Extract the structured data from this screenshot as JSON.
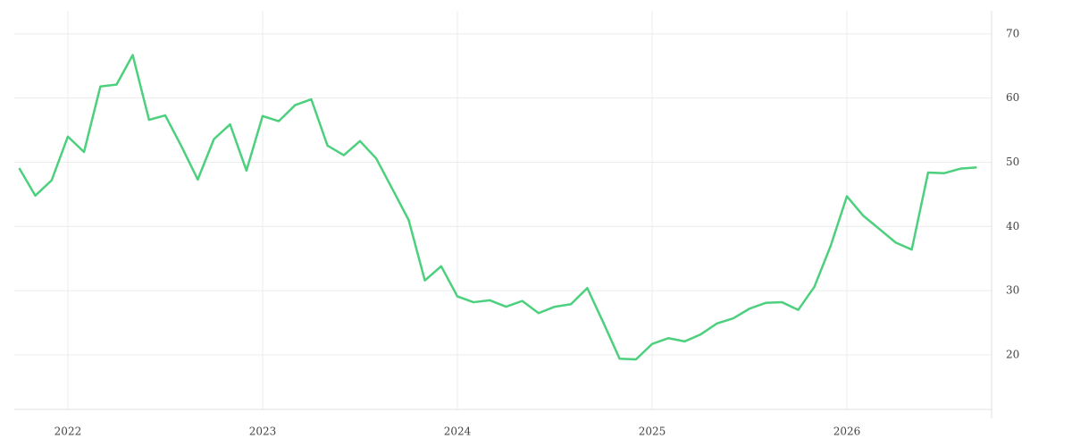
{
  "chart_data": {
    "type": "line",
    "x": [
      2021.75,
      2021.833,
      2021.917,
      2022,
      2022.083,
      2022.167,
      2022.25,
      2022.333,
      2022.417,
      2022.5,
      2022.583,
      2022.667,
      2022.75,
      2022.833,
      2022.917,
      2023,
      2023.083,
      2023.167,
      2023.25,
      2023.333,
      2023.417,
      2023.5,
      2023.583,
      2023.667,
      2023.75,
      2023.833,
      2023.917,
      2024,
      2024.083,
      2024.167,
      2024.25,
      2024.333,
      2024.417,
      2024.5,
      2024.583,
      2024.667,
      2024.75,
      2024.833,
      2024.917,
      2025,
      2025.083,
      2025.167,
      2025.25,
      2025.333,
      2025.417,
      2025.5,
      2025.583,
      2025.667,
      2025.75,
      2025.833,
      2025.917,
      2026,
      2026.083,
      2026.167,
      2026.25,
      2026.333,
      2026.417,
      2026.5,
      2026.583,
      2026.667
    ],
    "series": [
      {
        "color": "#4cd07d",
        "values": [
          49.1,
          44.8,
          47.2,
          54.0,
          51.6,
          61.8,
          62.1,
          66.7,
          56.6,
          57.3,
          52.5,
          47.3,
          53.6,
          55.9,
          48.7,
          57.2,
          56.4,
          58.9,
          59.8,
          52.6,
          51.1,
          53.3,
          50.6,
          45.8,
          41.0,
          31.6,
          33.8,
          29.1,
          28.2,
          28.5,
          27.5,
          28.4,
          26.5,
          27.5,
          27.9,
          30.4,
          25.0,
          19.4,
          19.3,
          21.7,
          22.6,
          22.1,
          23.2,
          24.9,
          25.7,
          27.2,
          28.1,
          28.2,
          27.0,
          30.6,
          37.0,
          44.7,
          41.7,
          39.6,
          37.5,
          36.4,
          48.4,
          48.3,
          49.0,
          49.2
        ]
      }
    ],
    "xlim": [
      2021.725,
      2026.743
    ],
    "xticks": [
      2022,
      2023,
      2024,
      2025,
      2026
    ],
    "ylim": [
      11.5,
      73.6
    ],
    "yticks": [
      20,
      30,
      40,
      50,
      60,
      70
    ],
    "grid": true
  }
}
